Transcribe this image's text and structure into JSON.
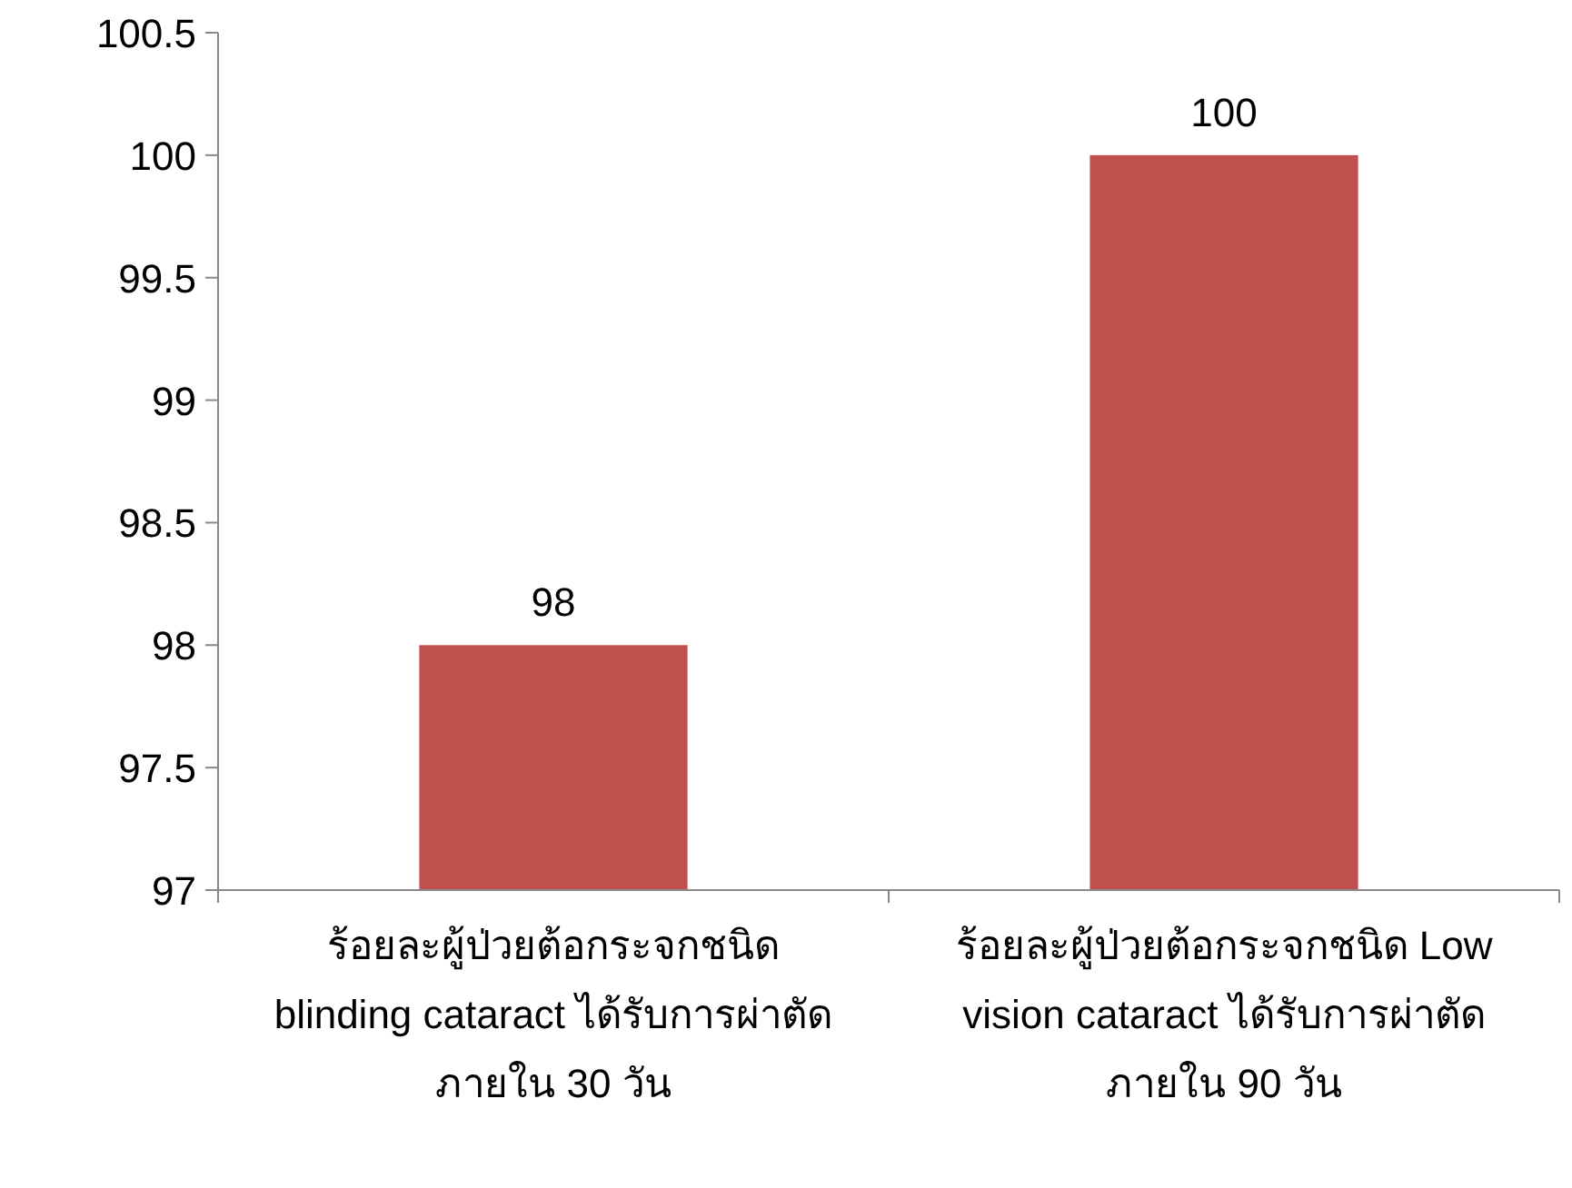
{
  "chart_data": {
    "type": "bar",
    "categories": [
      "ร้อยละผู้ป่วยต้อกระจกชนิด blinding cataract ได้รับการผ่าตัดภายใน 30 วัน",
      "ร้อยละผู้ป่วยต้อกระจกชนิด Low vision cataract ได้รับการผ่าตัดภายใน 90 วัน"
    ],
    "values": [
      98,
      100
    ],
    "color": "#c0504d",
    "data_labels": true,
    "ylim": [
      97,
      100.5
    ],
    "yticks": [
      97,
      97.5,
      98,
      98.5,
      99,
      99.5,
      100,
      100.5
    ]
  }
}
